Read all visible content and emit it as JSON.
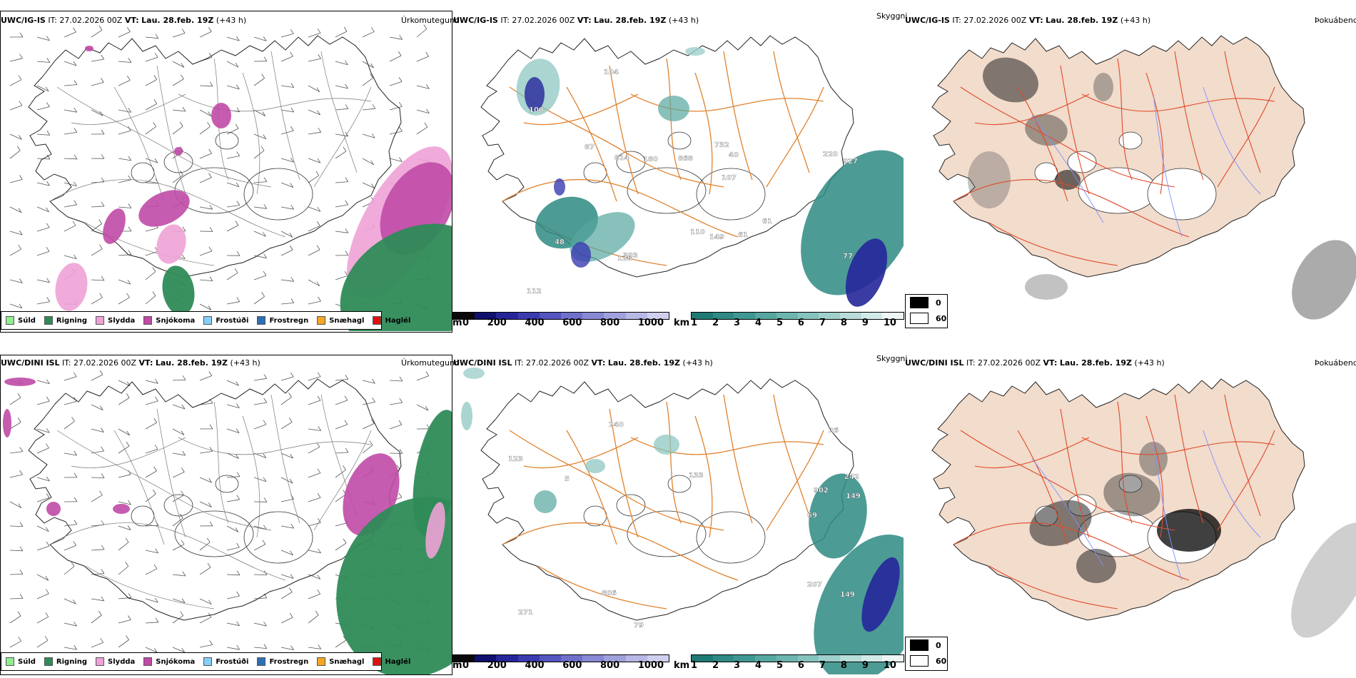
{
  "rows": [
    {
      "model": "UWC/IG-IS",
      "it_label": "IT:",
      "it_value": "27.02.2026 00Z",
      "vt_label": "VT:",
      "vt_value": "Lau. 28.feb. 19Z",
      "lead": "(+43 h)"
    },
    {
      "model": "UWC/DINI ISL",
      "it_label": "IT:",
      "it_value": "27.02.2026 00Z",
      "vt_label": "VT:",
      "vt_value": "Lau. 28.feb. 19Z",
      "lead": "(+43 h)"
    }
  ],
  "panel_titles": {
    "precip": "Úrkomutegund",
    "visibility": "Skyggni",
    "cloud": "Þokuábendi"
  },
  "precip_legend": [
    {
      "label": "Súld",
      "color": "#90ee90"
    },
    {
      "label": "Rigning",
      "color": "#2e8b57"
    },
    {
      "label": "Slydda",
      "color": "#eea2d6"
    },
    {
      "label": "Snjókoma",
      "color": "#c04aa6"
    },
    {
      "label": "Frostúði",
      "color": "#87cefa"
    },
    {
      "label": "Frostregn",
      "color": "#2c6fb5"
    },
    {
      "label": "Snæhagl",
      "color": "#f5a623"
    },
    {
      "label": "Haglél",
      "color": "#e01010"
    }
  ],
  "ceiling_bar": {
    "unit": "m",
    "ticks": [
      "0",
      "200",
      "400",
      "600",
      "800",
      "1000"
    ],
    "colors": [
      "#0a0a0a",
      "#10106e",
      "#26269a",
      "#3b3bb0",
      "#5555c0",
      "#7070ca",
      "#8888d4",
      "#a0a0dc",
      "#b8b8e6",
      "#d0d0ee"
    ]
  },
  "visibility_bar": {
    "unit": "km",
    "ticks": [
      "1",
      "2",
      "3",
      "4",
      "5",
      "6",
      "7",
      "8",
      "9",
      "10"
    ],
    "colors": [
      "#1f7a73",
      "#2e8a83",
      "#3e9891",
      "#55a7a0",
      "#6db5af",
      "#86c3be",
      "#9fd0cc",
      "#b8ddda",
      "#d2ebe8",
      "#eef7f6"
    ]
  },
  "cloud_legend": [
    {
      "label": "0",
      "color": "#000000"
    },
    {
      "label": "60",
      "color": "#ffffff"
    }
  ],
  "ceiling_labels": [
    [
      "112",
      "77",
      "104",
      "87",
      "61",
      "40",
      "107",
      "868",
      "180",
      "110",
      "732",
      "927",
      "814",
      "393",
      "149",
      "128",
      "100",
      "61",
      "220",
      "48"
    ],
    [
      "207",
      "242",
      "149",
      "133",
      "271",
      "240",
      "902",
      "806",
      "26",
      "5",
      "149",
      "123",
      "69",
      "79"
    ]
  ]
}
